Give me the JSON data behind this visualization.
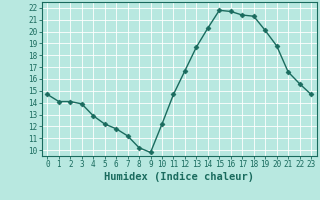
{
  "x": [
    0,
    1,
    2,
    3,
    4,
    5,
    6,
    7,
    8,
    9,
    10,
    11,
    12,
    13,
    14,
    15,
    16,
    17,
    18,
    19,
    20,
    21,
    22,
    23
  ],
  "y": [
    14.7,
    14.1,
    14.1,
    13.9,
    12.9,
    12.2,
    11.8,
    11.2,
    10.2,
    9.8,
    12.2,
    14.7,
    16.7,
    18.7,
    20.3,
    21.8,
    21.7,
    21.4,
    21.3,
    20.1,
    18.8,
    16.6,
    15.6,
    14.7
  ],
  "line_color": "#1a6b5e",
  "marker": "D",
  "marker_size": 2.5,
  "bg_color": "#b8e8e0",
  "grid_color": "#ffffff",
  "xlabel": "Humidex (Indice chaleur)",
  "xlim": [
    -0.5,
    23.5
  ],
  "ylim": [
    9.5,
    22.5
  ],
  "yticks": [
    10,
    11,
    12,
    13,
    14,
    15,
    16,
    17,
    18,
    19,
    20,
    21,
    22
  ],
  "xticks": [
    0,
    1,
    2,
    3,
    4,
    5,
    6,
    7,
    8,
    9,
    10,
    11,
    12,
    13,
    14,
    15,
    16,
    17,
    18,
    19,
    20,
    21,
    22,
    23
  ],
  "tick_fontsize": 5.5,
  "xlabel_fontsize": 7.5,
  "axis_color": "#1a6b5e",
  "line_width": 1.0
}
